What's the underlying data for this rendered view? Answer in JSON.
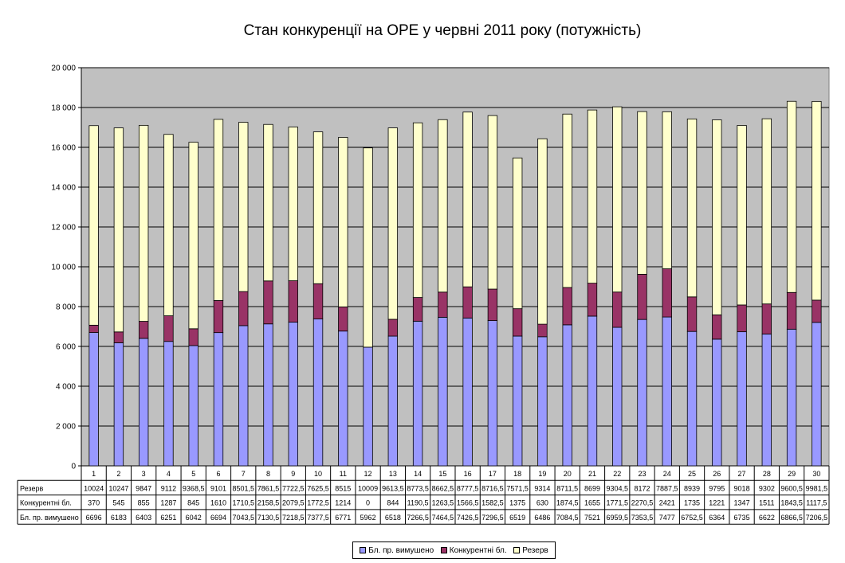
{
  "chart_data": {
    "type": "bar",
    "stacked": true,
    "title": "Стан конкуренції на ОРЕ  у червні 2011 року (потужність)",
    "ylim": [
      0,
      20000
    ],
    "yticks": [
      "0",
      "2 000",
      "4 000",
      "6 000",
      "8 000",
      "10 000",
      "12 000",
      "14 000",
      "16 000",
      "18 000",
      "20 000"
    ],
    "ytick_values": [
      0,
      2000,
      4000,
      6000,
      8000,
      10000,
      12000,
      14000,
      16000,
      18000,
      20000
    ],
    "categories": [
      "1",
      "2",
      "3",
      "4",
      "5",
      "6",
      "7",
      "8",
      "9",
      "10",
      "11",
      "12",
      "13",
      "14",
      "15",
      "16",
      "17",
      "18",
      "19",
      "20",
      "21",
      "22",
      "23",
      "24",
      "25",
      "26",
      "27",
      "28",
      "29",
      "30"
    ],
    "grid": true,
    "legend_position": "bottom",
    "plot_background": "#c0c0c0",
    "series": [
      {
        "name": "Бл. пр. вимушено",
        "color": "#9999ff",
        "values": [
          6696,
          6183,
          6403,
          6251,
          6042,
          6694,
          7043.5,
          7130.5,
          7218.5,
          7377.5,
          6771,
          5962,
          6518,
          7266.5,
          7464.5,
          7426.5,
          7296.5,
          6519,
          6486,
          7084.5,
          7521,
          6959.5,
          7353.5,
          7477,
          6752.5,
          6364,
          6735,
          6622,
          6866.5,
          7206.5
        ],
        "labels": [
          "6696",
          "6183",
          "6403",
          "6251",
          "6042",
          "6694",
          "7043,5",
          "7130,5",
          "7218,5",
          "7377,5",
          "6771",
          "5962",
          "6518",
          "7266,5",
          "7464,5",
          "7426,5",
          "7296,5",
          "6519",
          "6486",
          "7084,5",
          "7521",
          "6959,5",
          "7353,5",
          "7477",
          "6752,5",
          "6364",
          "6735",
          "6622",
          "6866,5",
          "7206,5"
        ]
      },
      {
        "name": "Конкурентні бл.",
        "color": "#993366",
        "values": [
          370,
          545,
          855,
          1287,
          845,
          1610,
          1710.5,
          2158.5,
          2079.5,
          1772.5,
          1214,
          0,
          844,
          1190.5,
          1263.5,
          1566.5,
          1582.5,
          1375,
          630,
          1874.5,
          1655,
          1771.5,
          2270.5,
          2421,
          1735,
          1221,
          1347,
          1511,
          1843.5,
          1117.5
        ],
        "labels": [
          "370",
          "545",
          "855",
          "1287",
          "845",
          "1610",
          "1710,5",
          "2158,5",
          "2079,5",
          "1772,5",
          "1214",
          "0",
          "844",
          "1190,5",
          "1263,5",
          "1566,5",
          "1582,5",
          "1375",
          "630",
          "1874,5",
          "1655",
          "1771,5",
          "2270,5",
          "2421",
          "1735",
          "1221",
          "1347",
          "1511",
          "1843,5",
          "1117,5"
        ]
      },
      {
        "name": "Резерв",
        "color": "#ffffcc",
        "values": [
          10024,
          10247,
          9847,
          9112,
          9368.5,
          9101,
          8501.5,
          7861.5,
          7722.5,
          7625.5,
          8515,
          10009,
          9613.5,
          8773.5,
          8662.5,
          8777.5,
          8716.5,
          7571.5,
          9314,
          8711.5,
          8699,
          9304.5,
          8172,
          7887.5,
          8939,
          9795,
          9018,
          9302,
          9600.5,
          9981.5
        ],
        "labels": [
          "10024",
          "10247",
          "9847",
          "9112",
          "9368,5",
          "9101",
          "8501,5",
          "7861,5",
          "7722,5",
          "7625,5",
          "8515",
          "10009",
          "9613,5",
          "8773,5",
          "8662,5",
          "8777,5",
          "8716,5",
          "7571,5",
          "9314",
          "8711,5",
          "8699",
          "9304,5",
          "8172",
          "7887,5",
          "8939",
          "9795",
          "9018",
          "9302",
          "9600,5",
          "9981,5"
        ]
      }
    ],
    "table_rows_order": [
      2,
      1,
      0
    ]
  }
}
